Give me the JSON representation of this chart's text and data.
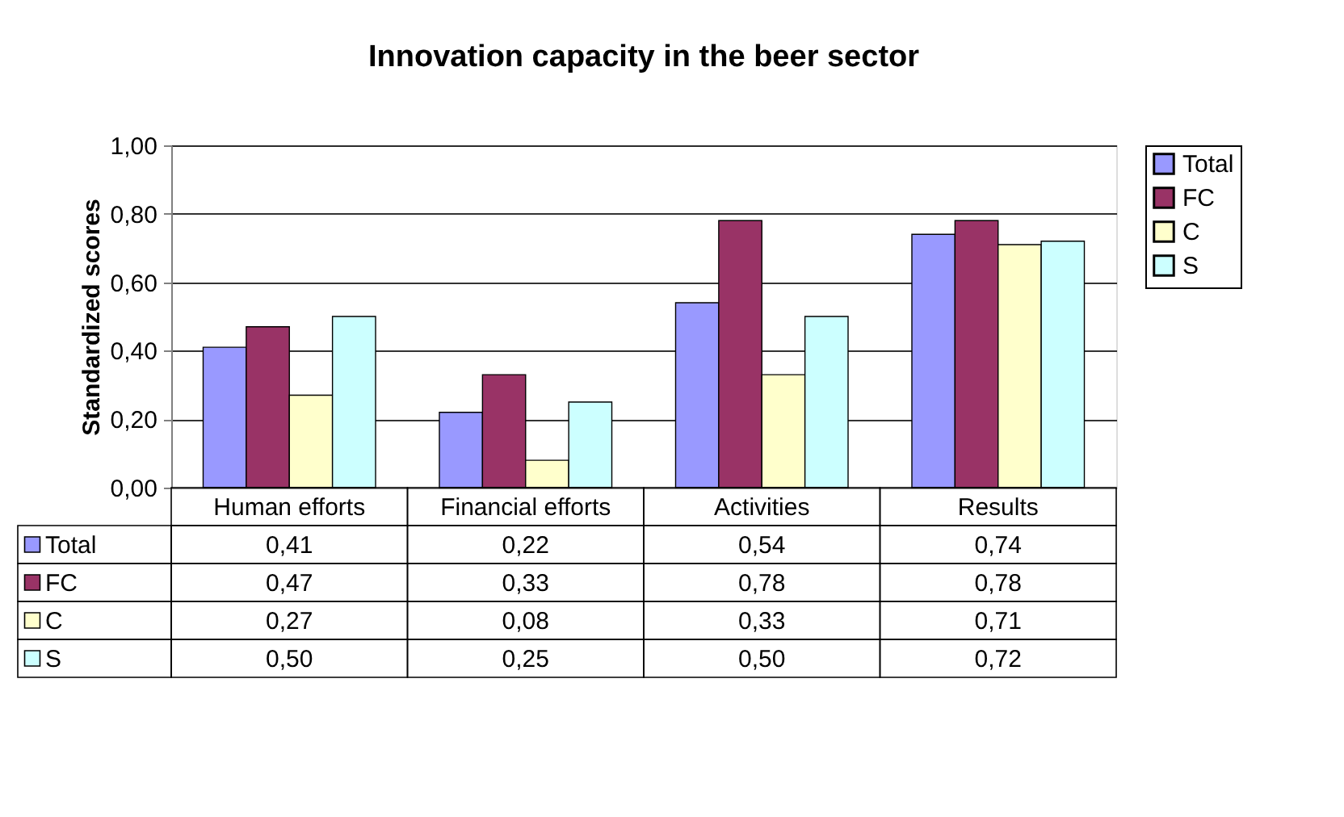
{
  "chart_data": {
    "type": "bar",
    "title": "Innovation capacity in the beer sector",
    "ylabel": "Standardized scores",
    "categories": [
      "Human efforts",
      "Financial efforts",
      "Activities",
      "Results"
    ],
    "series": [
      {
        "name": "Total",
        "color": "#9999ff",
        "values": [
          0.41,
          0.22,
          0.54,
          0.74
        ],
        "value_labels": [
          "0,41",
          "0,22",
          "0,54",
          "0,74"
        ]
      },
      {
        "name": "FC",
        "color": "#993366",
        "values": [
          0.47,
          0.33,
          0.78,
          0.78
        ],
        "value_labels": [
          "0,47",
          "0,33",
          "0,78",
          "0,78"
        ]
      },
      {
        "name": "C",
        "color": "#ffffcc",
        "values": [
          0.27,
          0.08,
          0.33,
          0.71
        ],
        "value_labels": [
          "0,27",
          "0,08",
          "0,33",
          "0,71"
        ]
      },
      {
        "name": "S",
        "color": "#ccffff",
        "values": [
          0.5,
          0.25,
          0.5,
          0.72
        ],
        "value_labels": [
          "0,50",
          "0,25",
          "0,50",
          "0,72"
        ]
      }
    ],
    "ylim": [
      0,
      1
    ],
    "yticks": [
      {
        "value": 0,
        "label": "0,00"
      },
      {
        "value": 0.2,
        "label": "0,20"
      },
      {
        "value": 0.4,
        "label": "0,40"
      },
      {
        "value": 0.6,
        "label": "0,60"
      },
      {
        "value": 0.8,
        "label": "0,80"
      },
      {
        "value": 1,
        "label": "1,00"
      }
    ],
    "grid": "y",
    "legend": "right"
  }
}
